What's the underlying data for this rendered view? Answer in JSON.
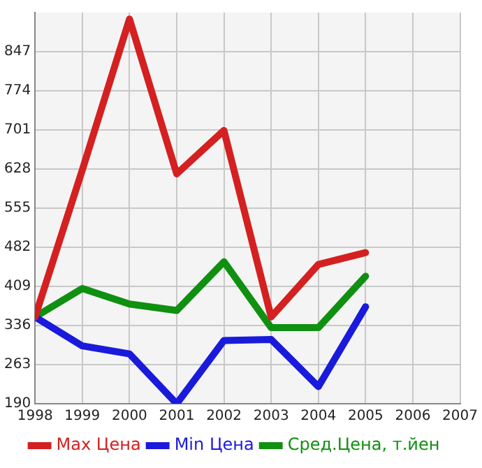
{
  "chart_data": {
    "type": "line",
    "x": [
      1998,
      1999,
      2000,
      2001,
      2002,
      2003,
      2004,
      2005
    ],
    "series": [
      {
        "name": "Max Цена",
        "color": "#d42020",
        "values": [
          352,
          626,
          908,
          619,
          700,
          352,
          450,
          472
        ]
      },
      {
        "name": "Min Цена",
        "color": "#1a1adc",
        "values": [
          352,
          298,
          283,
          190,
          308,
          310,
          222,
          371
        ]
      },
      {
        "name": "Сред.Цена, т.йен",
        "color": "#109010",
        "values": [
          352,
          405,
          376,
          364,
          455,
          332,
          332,
          428
        ]
      }
    ],
    "xlim": [
      1998,
      2007
    ],
    "xticks": [
      1998,
      1999,
      2000,
      2001,
      2002,
      2003,
      2004,
      2005,
      2006,
      2007
    ],
    "ylim": [
      190,
      920
    ],
    "yticks": [
      190,
      263,
      336,
      409,
      482,
      555,
      628,
      701,
      774,
      847
    ],
    "grid": true,
    "legend": "bottom",
    "marker": "none",
    "line_style": "solid"
  }
}
